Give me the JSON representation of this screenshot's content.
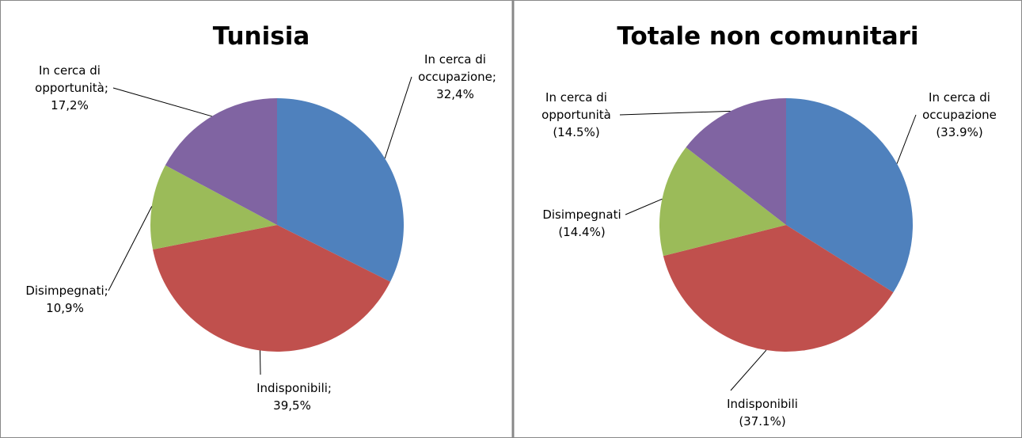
{
  "chart_data": [
    {
      "type": "pie",
      "title": "Tunisia",
      "categories": [
        "In cerca di occupazione",
        "Indisponibili",
        "Disimpegnati",
        "In cerca di opportunità"
      ],
      "values": [
        32.4,
        39.5,
        10.9,
        17.2
      ],
      "value_labels": [
        "32,4%",
        "39,5%",
        "10,9%",
        "17,2%"
      ],
      "separator": ";",
      "colors": [
        "#4f81bd",
        "#c0504d",
        "#9bbb59",
        "#8064a2"
      ]
    },
    {
      "type": "pie",
      "title": "Totale non comunitari",
      "categories": [
        "In cerca di occupazione",
        "Indisponibili",
        "Disimpegnati",
        "In cerca di opportunità"
      ],
      "values": [
        33.9,
        37.1,
        14.4,
        14.5
      ],
      "value_labels": [
        "(33.9%)",
        "(37.1%)",
        "(14.4%)",
        "(14.5%)"
      ],
      "colors": [
        "#4f81bd",
        "#c0504d",
        "#9bbb59",
        "#8064a2"
      ]
    }
  ]
}
